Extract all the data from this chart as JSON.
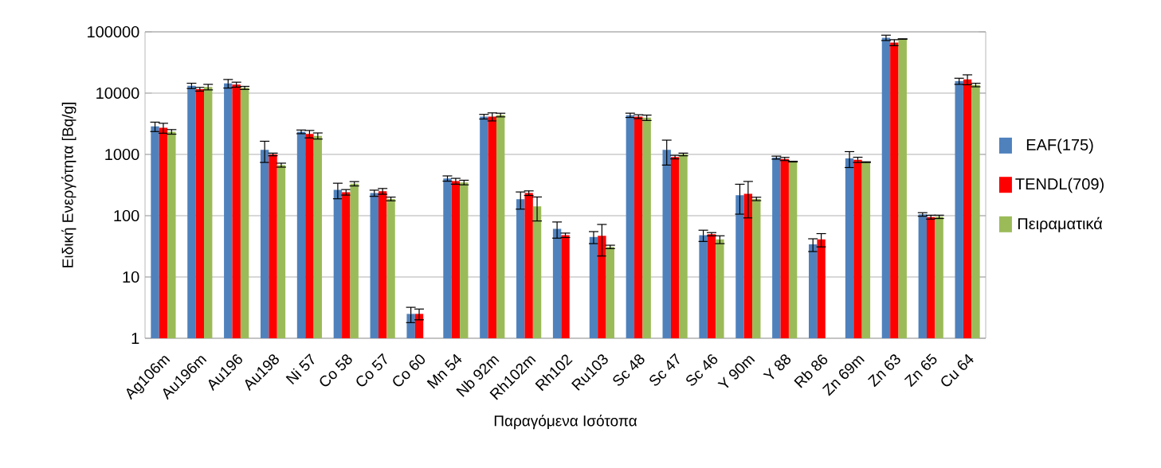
{
  "chart_data": {
    "type": "bar",
    "xlabel": "Παραγόμενα Ισότοπα",
    "ylabel": "Ειδική Ενεργότητα [Bq/g]",
    "categories": [
      "Ag106m",
      "Au196m",
      "Au196",
      "Au198",
      "Ni 57",
      "Co 58",
      "Co 57",
      "Co 60",
      "Mn 54",
      "Nb 92m",
      "Rh102m",
      "Rh102",
      "Ru103",
      "Sc 48",
      "Sc 47",
      "Sc 46",
      "Y 90m",
      "Y 88",
      "Rb 86",
      "Zn 69m",
      "Zn 63",
      "Zn 65",
      "Cu 64"
    ],
    "log": "y",
    "ylim": [
      1,
      100000
    ],
    "yticks": [
      1,
      10,
      100,
      1000,
      10000,
      100000
    ],
    "grid": "y",
    "legend": "right",
    "series": [
      {
        "name": "EAF(175)",
        "color": "#4f81bd",
        "values": [
          2860,
          13200,
          14400,
          1190,
          2340,
          264,
          234,
          2.5,
          406,
          4140,
          186,
          61,
          45,
          4360,
          1190,
          48,
          216,
          887,
          34,
          861,
          80200,
          105,
          15700
        ],
        "errors": [
          500,
          1300,
          2300,
          450,
          160,
          75,
          27,
          0.7,
          40,
          360,
          58,
          18,
          10,
          350,
          520,
          10,
          110,
          50,
          8,
          250,
          8000,
          7,
          1800
        ]
      },
      {
        "name": "TENDL(709)",
        "color": "#ff0000",
        "values": [
          2720,
          11600,
          13800,
          1000,
          2160,
          242,
          251,
          2.5,
          367,
          4140,
          234,
          48,
          47,
          4140,
          906,
          50,
          227,
          844,
          41,
          819,
          67000,
          95,
          16800
        ],
        "errors": [
          500,
          800,
          1300,
          50,
          300,
          25,
          27,
          0.5,
          40,
          620,
          20,
          4,
          25,
          300,
          60,
          3,
          135,
          50,
          10,
          80,
          7500,
          7,
          3100
        ]
      },
      {
        "name": "Πειραματικά",
        "color": "#9bbb59",
        "values": [
          2340,
          12600,
          12200,
          670,
          2010,
          333,
          188,
          null,
          349,
          4400,
          142,
          null,
          31,
          3980,
          1000,
          41,
          188,
          763,
          null,
          748,
          76400,
          96,
          13600
        ],
        "errors": [
          200,
          1300,
          700,
          50,
          230,
          27,
          13,
          null,
          30,
          300,
          60,
          null,
          2,
          400,
          50,
          6,
          12,
          10,
          null,
          10,
          500,
          6,
          900
        ]
      }
    ]
  }
}
